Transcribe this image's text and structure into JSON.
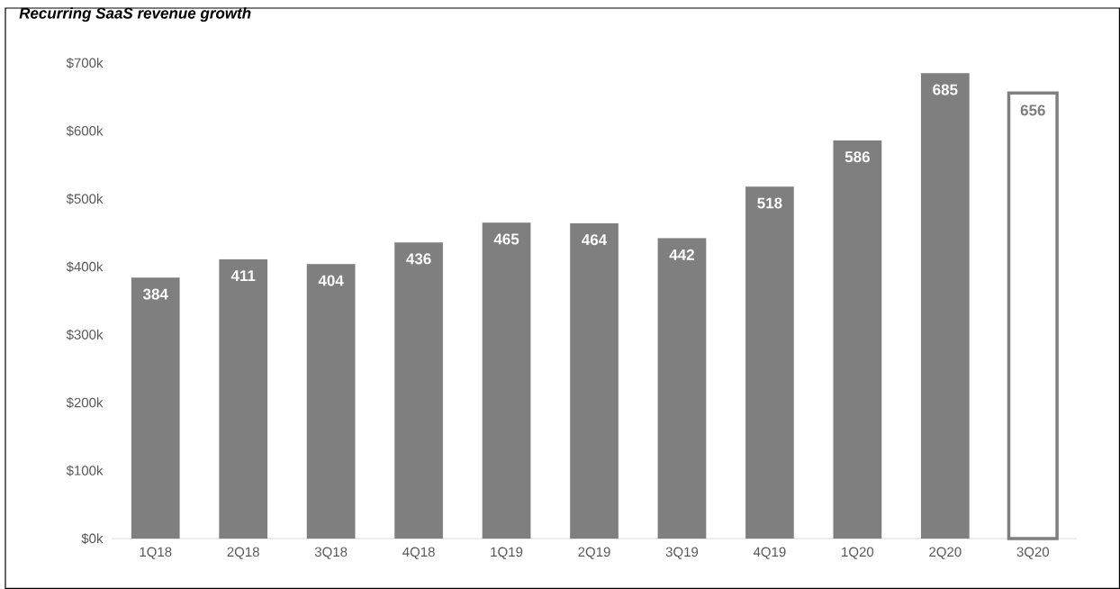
{
  "chart_data": {
    "type": "bar",
    "title": "Recurring SaaS revenue growth",
    "categories": [
      "1Q18",
      "2Q18",
      "3Q18",
      "4Q18",
      "1Q19",
      "2Q19",
      "3Q19",
      "4Q19",
      "1Q20",
      "2Q20",
      "3Q20"
    ],
    "values": [
      384,
      411,
      404,
      436,
      465,
      464,
      442,
      518,
      586,
      685,
      656
    ],
    "color": "#7f7f7f",
    "colors": [
      "#7f7f7f",
      "#7f7f7f",
      "#7f7f7f",
      "#7f7f7f",
      "#7f7f7f",
      "#7f7f7f",
      "#7f7f7f",
      "#7f7f7f",
      "#7f7f7f",
      "#7f7f7f",
      "#ffffff"
    ],
    "data_labels": true,
    "ylim": [
      0,
      700
    ],
    "yticks": [
      {
        "value": 0,
        "label": "$0k"
      },
      {
        "value": 100,
        "label": "$100k"
      },
      {
        "value": 200,
        "label": "$200k"
      },
      {
        "value": 300,
        "label": "$300k"
      },
      {
        "value": 400,
        "label": "$400k"
      },
      {
        "value": 500,
        "label": "$500k"
      },
      {
        "value": 600,
        "label": "$600k"
      },
      {
        "value": 700,
        "label": "$700k"
      }
    ]
  }
}
